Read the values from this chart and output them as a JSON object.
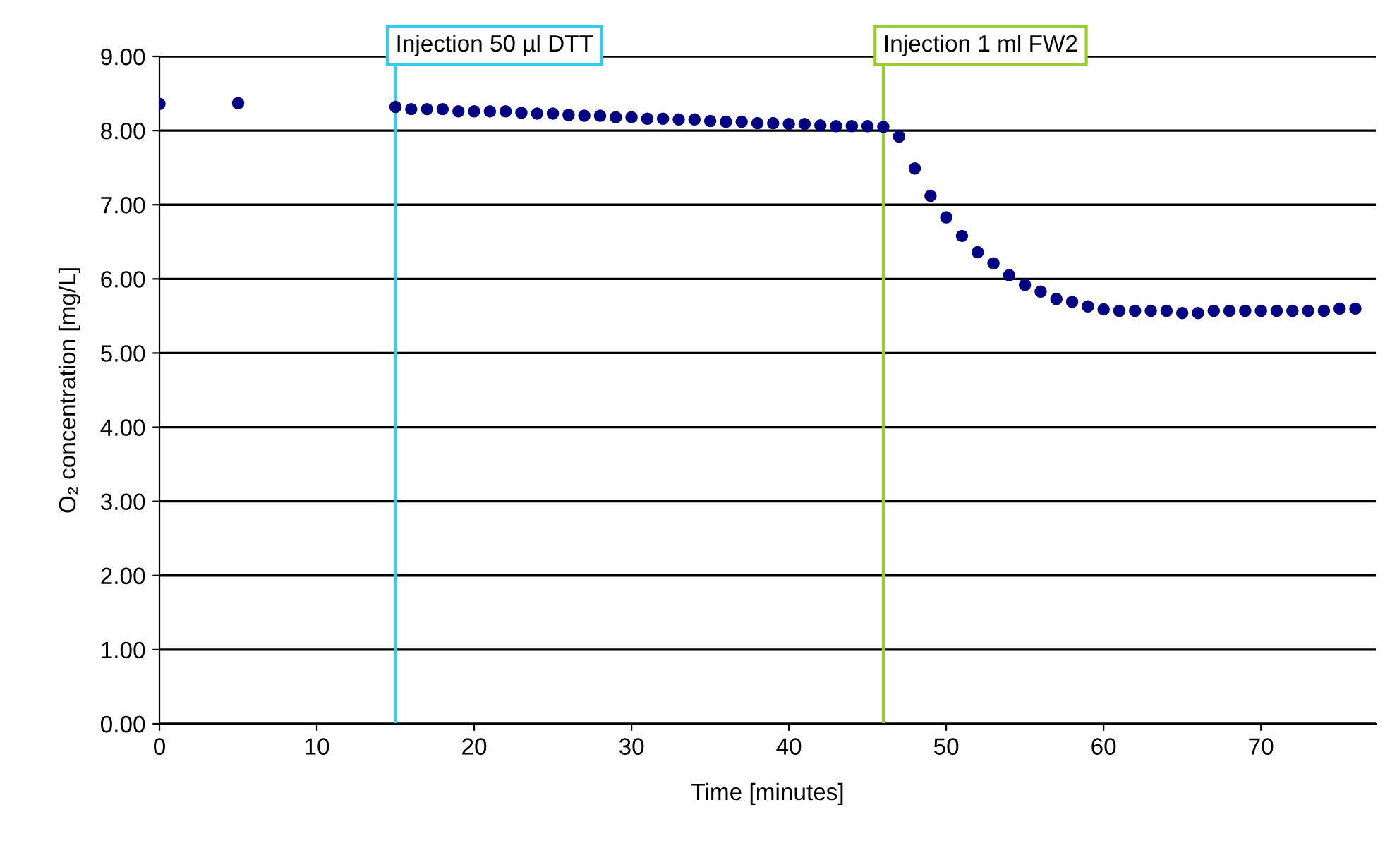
{
  "chart_data": {
    "type": "scatter",
    "xlabel": "Time [minutes]",
    "ylabel": "O₂ concentration [mg/L]",
    "x": [
      0,
      5,
      15,
      16,
      17,
      18,
      19,
      20,
      21,
      22,
      23,
      24,
      25,
      26,
      27,
      28,
      29,
      30,
      31,
      32,
      33,
      34,
      35,
      36,
      37,
      38,
      39,
      40,
      41,
      42,
      43,
      44,
      45,
      46,
      47,
      48,
      49,
      50,
      51,
      52,
      53,
      54,
      55,
      56,
      57,
      58,
      59,
      60,
      61,
      62,
      63,
      64,
      65,
      66,
      67,
      68,
      69,
      70,
      71,
      72,
      73,
      74,
      75,
      76
    ],
    "series": [
      {
        "color": "#000080",
        "values": [
          8.36,
          8.37,
          8.32,
          8.29,
          8.29,
          8.29,
          8.26,
          8.26,
          8.26,
          8.26,
          8.24,
          8.23,
          8.23,
          8.21,
          8.2,
          8.2,
          8.18,
          8.18,
          8.16,
          8.16,
          8.15,
          8.15,
          8.13,
          8.12,
          8.12,
          8.1,
          8.1,
          8.09,
          8.09,
          8.07,
          8.06,
          8.06,
          8.06,
          8.05,
          7.92,
          7.49,
          7.12,
          6.83,
          6.58,
          6.36,
          6.21,
          6.05,
          5.92,
          5.83,
          5.73,
          5.69,
          5.63,
          5.59,
          5.57,
          5.57,
          5.57,
          5.57,
          5.54,
          5.54,
          5.57,
          5.57,
          5.57,
          5.57,
          5.57,
          5.57,
          5.57,
          5.57,
          5.6,
          5.6
        ]
      }
    ],
    "marker": "circle",
    "xlim": [
      0,
      77.3
    ],
    "xticks": [
      0,
      10,
      20,
      30,
      40,
      50,
      60,
      70
    ],
    "ylim": [
      0,
      9
    ],
    "yticks": [
      {
        "value": 0,
        "label": "0.00"
      },
      {
        "value": 1,
        "label": "1.00"
      },
      {
        "value": 2,
        "label": "2.00"
      },
      {
        "value": 3,
        "label": "3.00"
      },
      {
        "value": 4,
        "label": "4.00"
      },
      {
        "value": 5,
        "label": "5.00"
      },
      {
        "value": 6,
        "label": "6.00"
      },
      {
        "value": 7,
        "label": "7.00"
      },
      {
        "value": 8,
        "label": "8.00"
      },
      {
        "value": 9,
        "label": "9.00"
      }
    ],
    "grid": "y",
    "ref_lines": [
      {
        "axis": "x",
        "value": 15,
        "label": "Injection 50 µl DTT",
        "color": "#33ccee"
      },
      {
        "axis": "x",
        "value": 46,
        "label": "Injection 1 ml FW2",
        "color": "#99cc33"
      }
    ]
  }
}
